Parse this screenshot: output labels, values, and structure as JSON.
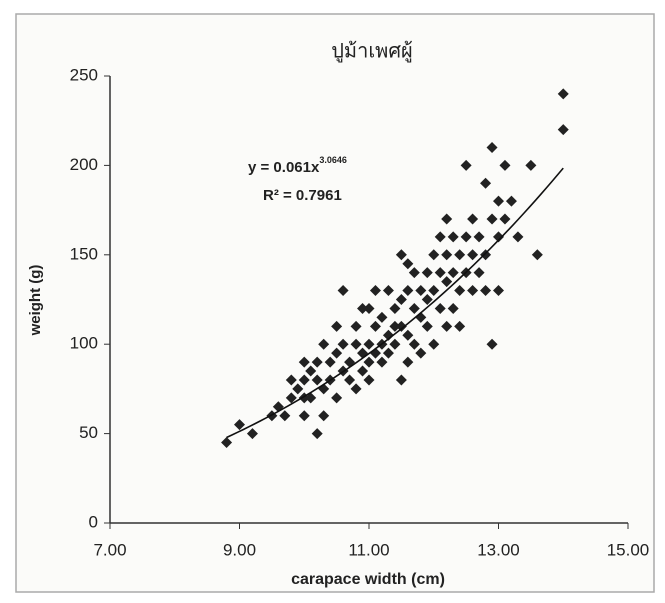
{
  "chart_data": {
    "type": "scatter",
    "title": "ปูม้าเพศผู้",
    "x_label": "carapace width (cm)",
    "y_label": "weight (g)",
    "xlim": [
      7,
      15
    ],
    "ylim": [
      0,
      250
    ],
    "xticks": [
      {
        "value": 7,
        "label": "7.00"
      },
      {
        "value": 9,
        "label": "9.00"
      },
      {
        "value": 11,
        "label": "11.00"
      },
      {
        "value": 13,
        "label": "13.00"
      },
      {
        "value": 15,
        "label": "15.00"
      }
    ],
    "yticks": [
      0,
      50,
      100,
      150,
      200,
      250
    ],
    "series": [
      {
        "color": "#222222",
        "x": [
          8.8,
          9.0,
          9.2,
          9.5,
          9.6,
          9.7,
          9.8,
          9.8,
          9.9,
          10.0,
          10.0,
          10.0,
          10.0,
          10.1,
          10.1,
          10.2,
          10.2,
          10.2,
          10.3,
          10.3,
          10.3,
          10.4,
          10.4,
          10.5,
          10.5,
          10.5,
          10.6,
          10.6,
          10.6,
          10.7,
          10.7,
          10.8,
          10.8,
          10.8,
          10.9,
          10.9,
          10.9,
          11.0,
          11.0,
          11.0,
          11.0,
          11.1,
          11.1,
          11.1,
          11.2,
          11.2,
          11.2,
          11.3,
          11.3,
          11.3,
          11.4,
          11.4,
          11.4,
          11.5,
          11.5,
          11.5,
          11.5,
          11.6,
          11.6,
          11.6,
          11.6,
          11.7,
          11.7,
          11.7,
          11.8,
          11.8,
          11.8,
          11.9,
          11.9,
          11.9,
          12.0,
          12.0,
          12.0,
          12.1,
          12.1,
          12.1,
          12.2,
          12.2,
          12.2,
          12.2,
          12.3,
          12.3,
          12.3,
          12.4,
          12.4,
          12.4,
          12.5,
          12.5,
          12.5,
          12.6,
          12.6,
          12.6,
          12.7,
          12.7,
          12.8,
          12.8,
          12.8,
          12.9,
          12.9,
          12.9,
          13.0,
          13.0,
          13.0,
          13.1,
          13.1,
          13.2,
          13.3,
          13.5,
          13.6,
          14.0,
          14.0
        ],
        "y": [
          45,
          55,
          50,
          60,
          65,
          60,
          70,
          80,
          75,
          90,
          80,
          70,
          60,
          85,
          70,
          80,
          90,
          50,
          100,
          75,
          60,
          90,
          80,
          110,
          95,
          70,
          130,
          100,
          85,
          90,
          80,
          110,
          100,
          75,
          120,
          95,
          85,
          120,
          100,
          90,
          80,
          130,
          110,
          95,
          115,
          100,
          90,
          130,
          105,
          95,
          120,
          110,
          100,
          150,
          125,
          110,
          80,
          145,
          130,
          105,
          90,
          140,
          120,
          100,
          130,
          115,
          95,
          140,
          125,
          110,
          150,
          130,
          100,
          160,
          140,
          120,
          170,
          150,
          135,
          110,
          160,
          140,
          120,
          150,
          130,
          110,
          200,
          160,
          140,
          170,
          150,
          130,
          160,
          140,
          190,
          150,
          130,
          210,
          170,
          100,
          180,
          160,
          130,
          200,
          170,
          180,
          160,
          200,
          150,
          240,
          220
        ]
      }
    ],
    "trendline": {
      "coefficient": 0.061,
      "exponent": 3.0646,
      "xrange": [
        8.8,
        14.0
      ],
      "equation_label": "y = 0.061x",
      "exponent_label": "3.0646",
      "r2_label": "R² = 0.7961"
    }
  }
}
